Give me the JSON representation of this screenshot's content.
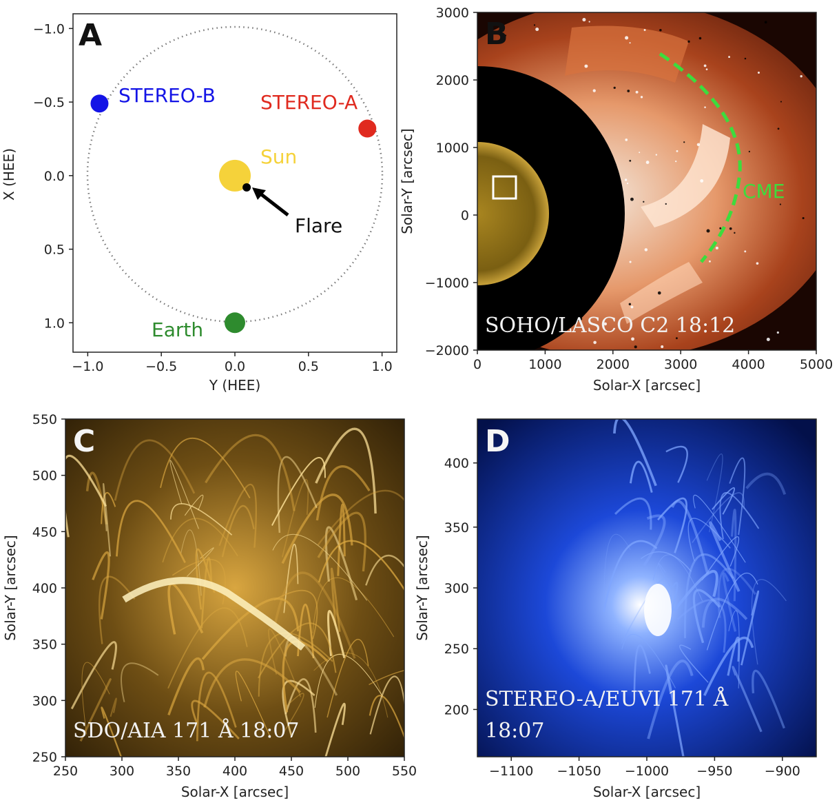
{
  "colors": {
    "stereo_b": "#1414e6",
    "stereo_a": "#e02a1f",
    "sun": "#f5d23a",
    "earth": "#2e8b2e",
    "cme": "#3ddc3d",
    "flare": "#000000",
    "aia_gold": "#c99a2a",
    "euvi_blue": "#2a5cff",
    "lasco_red": "#c0502a"
  },
  "panels": {
    "A": {
      "letter": "A",
      "xlabel": "Y (HEE)",
      "ylabel": "X (HEE)",
      "xticks": [
        "−1.0",
        "−0.5",
        "0.0",
        "0.5",
        "1.0"
      ],
      "yticks": [
        "−1.0",
        "−0.5",
        "0.0",
        "0.5",
        "1.0"
      ],
      "labels": {
        "stereo_b": "STEREO-B",
        "stereo_a": "STEREO-A",
        "sun": "Sun",
        "flare": "Flare",
        "earth": "Earth"
      }
    },
    "B": {
      "letter": "B",
      "xlabel": "Solar-X [arcsec]",
      "ylabel": "Solar-Y [arcsec]",
      "xticks": [
        "0",
        "1000",
        "2000",
        "3000",
        "4000",
        "5000"
      ],
      "yticks": [
        "3000",
        "2000",
        "1000",
        "0",
        "−1000",
        "−2000"
      ],
      "cme_label": "CME",
      "caption": "SOHO/LASCO C2 18:12"
    },
    "C": {
      "letter": "C",
      "xlabel": "Solar-X [arcsec]",
      "ylabel": "Solar-Y [arcsec]",
      "xticks": [
        "250",
        "300",
        "350",
        "400",
        "450",
        "500",
        "550"
      ],
      "yticks": [
        "550",
        "500",
        "450",
        "400",
        "350",
        "300",
        "250"
      ],
      "caption": "SDO/AIA 171 Å 18:07"
    },
    "D": {
      "letter": "D",
      "xlabel": "Solar-X [arcsec]",
      "ylabel": "Solar-Y [arcsec]",
      "xticks": [
        "−1100",
        "−1050",
        "−1000",
        "−950",
        "−900"
      ],
      "yticks": [
        "400",
        "350",
        "300",
        "250",
        "200"
      ],
      "caption_line1": "STEREO-A/EUVI 171 Å",
      "caption_line2": "18:07"
    }
  },
  "chart_data": {
    "type": "scatter",
    "title": "",
    "xlabel": "Y (HEE)",
    "ylabel": "X (HEE)",
    "xlim": [
      -1.1,
      1.1
    ],
    "ylim": [
      1.2,
      -1.1
    ],
    "grid": false,
    "series": [
      {
        "name": "STEREO-B",
        "x": [
          -0.92
        ],
        "y": [
          -0.49
        ]
      },
      {
        "name": "STEREO-A",
        "x": [
          0.9
        ],
        "y": [
          -0.32
        ]
      },
      {
        "name": "Sun",
        "x": [
          0.0
        ],
        "y": [
          0.0
        ]
      },
      {
        "name": "Flare",
        "x": [
          0.08
        ],
        "y": [
          0.08
        ]
      },
      {
        "name": "Earth",
        "x": [
          0.0
        ],
        "y": [
          1.0
        ]
      }
    ],
    "orbit_radius": 1.0
  }
}
